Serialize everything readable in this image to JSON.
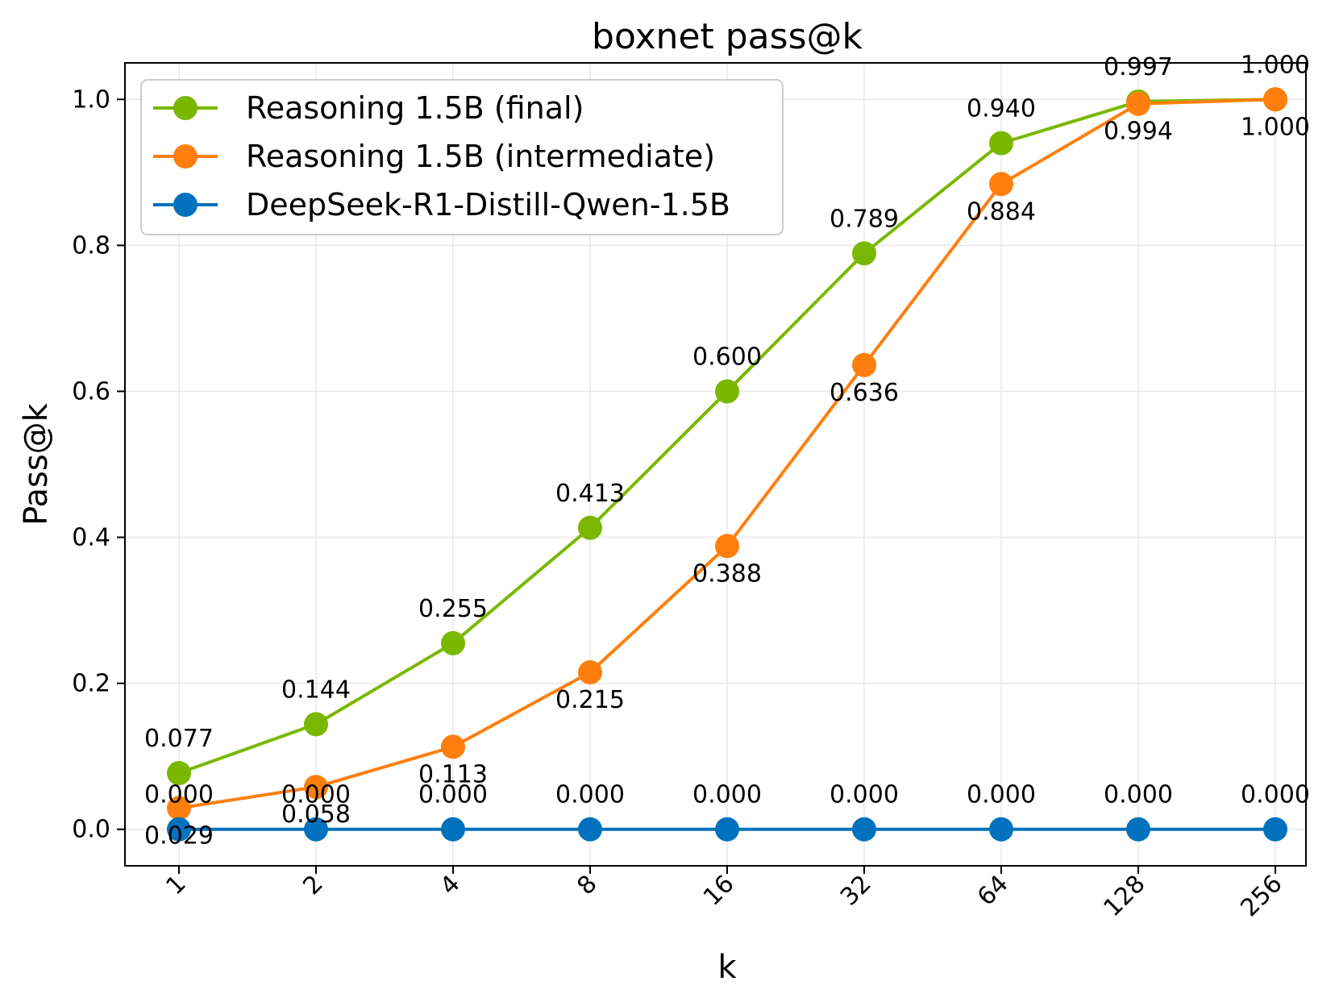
{
  "chart_data": {
    "type": "line",
    "title": "boxnet pass@k",
    "xlabel": "k",
    "ylabel": "Pass@k",
    "categories": [
      "1",
      "2",
      "4",
      "8",
      "16",
      "32",
      "64",
      "128",
      "256"
    ],
    "ylim": [
      -0.05,
      1.05
    ],
    "yticks": [
      "0.0",
      "0.2",
      "0.4",
      "0.6",
      "0.8",
      "1.0"
    ],
    "grid": true,
    "legend_position": "top-left",
    "series": [
      {
        "name": "Reasoning 1.5B (final)",
        "color": "#7ab800",
        "label_side": "above",
        "values": [
          0.077,
          0.144,
          0.255,
          0.413,
          0.6,
          0.789,
          0.94,
          0.997,
          1.0
        ],
        "labels": [
          "0.077",
          "0.144",
          "0.255",
          "0.413",
          "0.600",
          "0.789",
          "0.940",
          "0.997",
          "1.000"
        ]
      },
      {
        "name": "Reasoning 1.5B (intermediate)",
        "color": "#ff7f0e",
        "label_side": "below",
        "values": [
          0.029,
          0.058,
          0.113,
          0.215,
          0.388,
          0.636,
          0.884,
          0.994,
          1.0
        ],
        "labels": [
          "0.029",
          "0.058",
          "0.113",
          "0.215",
          "0.388",
          "0.636",
          "0.884",
          "0.994",
          "1.000"
        ]
      },
      {
        "name": "DeepSeek-R1-Distill-Qwen-1.5B",
        "color": "#0072bd",
        "label_side": "above",
        "values": [
          0,
          0,
          0,
          0,
          0,
          0,
          0,
          0,
          0
        ],
        "labels": [
          "0.000",
          "0.000",
          "0.000",
          "0.000",
          "0.000",
          "0.000",
          "0.000",
          "0.000",
          "0.000"
        ]
      }
    ]
  }
}
